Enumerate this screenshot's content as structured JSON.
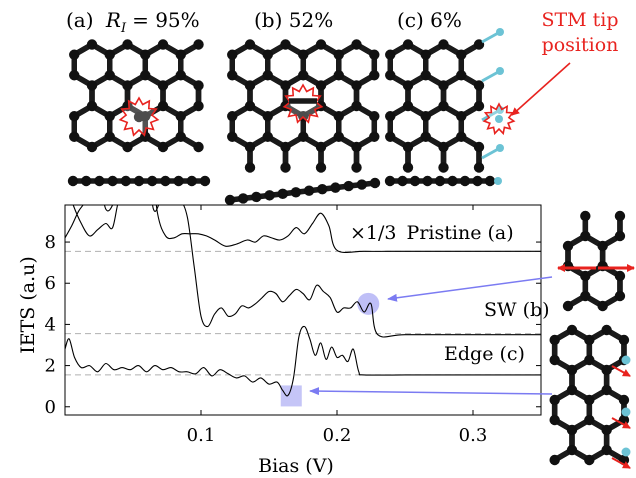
{
  "panels": {
    "a_label": "(a)",
    "a_ri_symbol": "R",
    "a_ri_sub": "I",
    "a_ri_value": "= 95%",
    "b_label": "(b) 52%",
    "c_label": "(c) 6%",
    "stm_label_line1": "STM tip",
    "stm_label_line2": "position"
  },
  "colors": {
    "atom": "#111111",
    "bond": "#1a1a1a",
    "hydrogen": "#6cc3d5",
    "accent_red": "#e8231f",
    "marker_blue": "#8b8bf0",
    "arrow_blue": "#7b7bf2",
    "dashed_line": "#b0b0b0"
  },
  "chart_data": {
    "type": "line",
    "xlabel": "Bias (V)",
    "ylabel": "IETS (a.u)",
    "xlim": [
      0,
      0.35
    ],
    "ylim": [
      -0.4,
      9.8
    ],
    "xticks": [
      "0.1",
      "0.2",
      "0.3"
    ],
    "xtick_values": [
      0.1,
      0.2,
      0.3
    ],
    "yticks": [
      "0",
      "2",
      "4",
      "6",
      "8"
    ],
    "ytick_values": [
      0,
      2,
      4,
      6,
      8
    ],
    "baselines": [
      7.55,
      3.55,
      1.55
    ],
    "series": [
      {
        "name": "Pristine (a)",
        "scale_label": "×1/3",
        "x": [
          0.0,
          0.006,
          0.012,
          0.018,
          0.024,
          0.03,
          0.035,
          0.04,
          0.046,
          0.052,
          0.056,
          0.062,
          0.068,
          0.074,
          0.08,
          0.086,
          0.092,
          0.098,
          0.104,
          0.11,
          0.118,
          0.126,
          0.134,
          0.14,
          0.146,
          0.152,
          0.158,
          0.164,
          0.17,
          0.176,
          0.182,
          0.188,
          0.194,
          0.2,
          0.22,
          0.25,
          0.3,
          0.35
        ],
        "y": [
          11,
          9.8,
          8.9,
          8.3,
          8.6,
          8.9,
          8.7,
          10.1,
          9.9,
          12,
          10.2,
          12.5,
          9.4,
          8.3,
          8.2,
          8.4,
          8.4,
          8.4,
          8.3,
          8.1,
          7.8,
          7.9,
          8.1,
          8.0,
          8.3,
          8.2,
          8.1,
          8.3,
          8.7,
          8.4,
          8.9,
          9.4,
          8.8,
          7.6,
          7.55,
          7.55,
          7.55,
          7.55
        ]
      },
      {
        "name": "SW (b)",
        "x": [
          0.0,
          0.005,
          0.01,
          0.015,
          0.02,
          0.025,
          0.03,
          0.035,
          0.04,
          0.045,
          0.05,
          0.055,
          0.06,
          0.065,
          0.07,
          0.075,
          0.08,
          0.085,
          0.09,
          0.095,
          0.1,
          0.105,
          0.11,
          0.115,
          0.12,
          0.125,
          0.13,
          0.135,
          0.14,
          0.145,
          0.15,
          0.155,
          0.16,
          0.165,
          0.17,
          0.175,
          0.18,
          0.185,
          0.19,
          0.195,
          0.2,
          0.205,
          0.21,
          0.215,
          0.22,
          0.225,
          0.23,
          0.25,
          0.3,
          0.35
        ],
        "y": [
          8.2,
          8.8,
          9.5,
          10,
          11,
          11,
          9.6,
          9.8,
          11,
          10,
          9.9,
          11,
          12,
          9.6,
          10,
          11,
          9.9,
          10,
          9.2,
          6.8,
          4.4,
          3.9,
          4.5,
          4.8,
          4.4,
          4.5,
          4.9,
          4.8,
          5.0,
          5.3,
          5.6,
          5.5,
          5.1,
          5.4,
          5.7,
          5.5,
          5.2,
          5.9,
          5.6,
          5.3,
          4.6,
          4.8,
          4.8,
          5.1,
          4.6,
          5.0,
          3.5,
          3.5,
          3.5,
          3.5
        ]
      },
      {
        "name": "Edge (c)",
        "x": [
          0.0,
          0.003,
          0.007,
          0.012,
          0.018,
          0.024,
          0.03,
          0.036,
          0.042,
          0.048,
          0.054,
          0.06,
          0.066,
          0.072,
          0.078,
          0.084,
          0.09,
          0.096,
          0.102,
          0.108,
          0.114,
          0.12,
          0.126,
          0.132,
          0.138,
          0.144,
          0.15,
          0.156,
          0.16,
          0.164,
          0.168,
          0.172,
          0.176,
          0.18,
          0.184,
          0.188,
          0.192,
          0.196,
          0.2,
          0.204,
          0.208,
          0.212,
          0.216,
          0.22,
          0.25,
          0.3,
          0.35
        ],
        "y": [
          2.8,
          3.3,
          2.4,
          1.9,
          2.0,
          1.7,
          2.1,
          1.8,
          1.9,
          1.8,
          2.0,
          1.7,
          2.0,
          1.8,
          1.9,
          1.7,
          1.7,
          1.6,
          1.9,
          1.5,
          1.8,
          1.6,
          1.4,
          1.5,
          1.2,
          1.4,
          1.1,
          1.2,
          0.8,
          0.55,
          1.4,
          3.4,
          3.9,
          3.3,
          2.5,
          3.1,
          2.3,
          2.9,
          2.4,
          2.5,
          2.2,
          2.8,
          1.7,
          1.55,
          1.55,
          1.55,
          1.55
        ]
      }
    ],
    "markers": [
      {
        "kind": "circle",
        "series": "SW (b)",
        "x": 0.223,
        "y": 5.0
      },
      {
        "kind": "square",
        "series": "Edge (c)",
        "x": 0.166,
        "y": 0.55
      }
    ]
  }
}
